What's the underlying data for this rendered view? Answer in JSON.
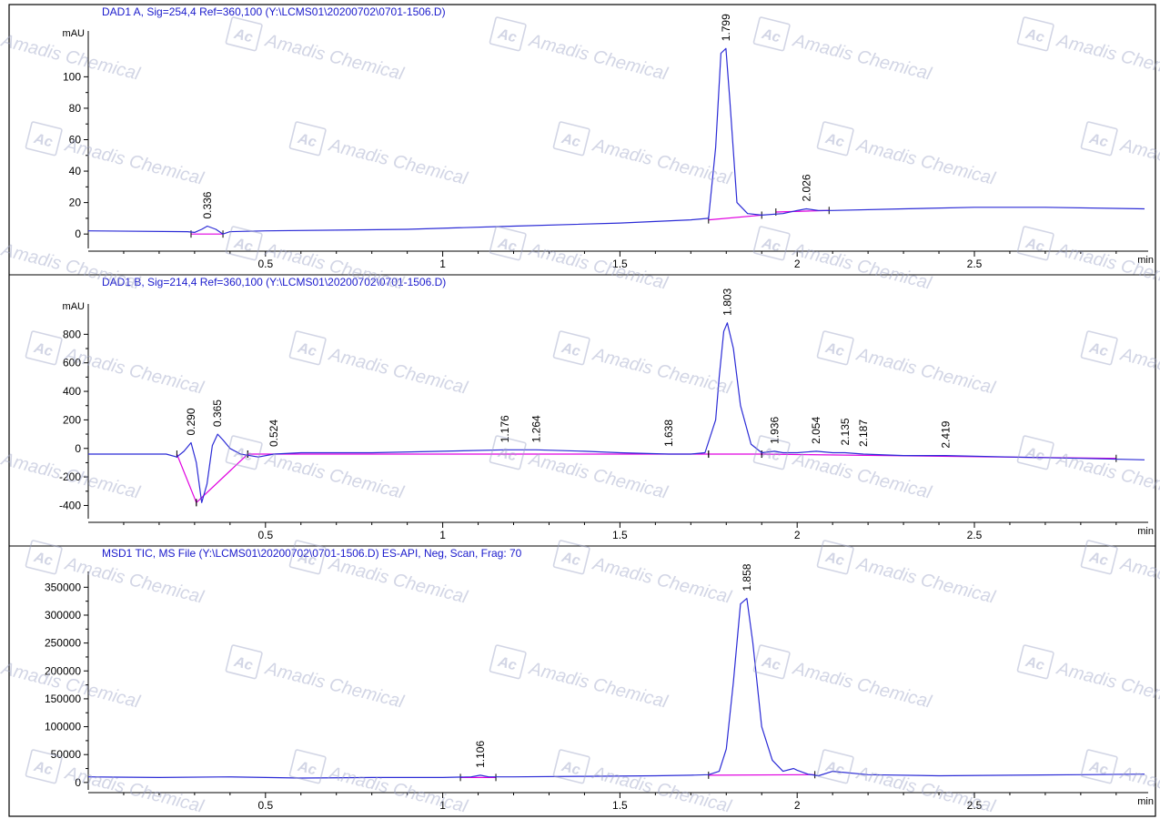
{
  "watermark": {
    "text": "Amadis Chemical",
    "logo": "Ac"
  },
  "colors": {
    "trace": "#2b2bd6",
    "baseline": "#e000e0",
    "title": "#1a1acc",
    "axis": "#000000",
    "frame": "#000000",
    "watermark": "#9aa2c4"
  },
  "x_unit": "min",
  "chart_data": [
    {
      "type": "line",
      "title": "DAD1 A, Sig=254,4 Ref=360,100 (Y:\\LCMS01\\20200702\\0701-1506.D)",
      "ylabel": "mAU",
      "xlabel": "min",
      "xlim": [
        0,
        2.98
      ],
      "ylim": [
        -8,
        128
      ],
      "x_ticks": [
        0.5,
        1,
        1.5,
        2,
        2.5
      ],
      "x_tick_labels": [
        "0.5",
        "1",
        "1.5",
        "2",
        "2.5"
      ],
      "y_ticks": [
        0,
        20,
        40,
        60,
        80,
        100
      ],
      "y_tick_labels": [
        "0",
        "20",
        "40",
        "60",
        "80",
        "100"
      ],
      "baseline_start": 2,
      "series": [
        {
          "x": [
            0.0,
            0.28,
            0.3,
            0.32,
            0.336,
            0.36,
            0.38,
            0.4,
            0.5,
            0.9,
            1.2,
            1.5,
            1.7,
            1.75,
            1.77,
            1.785,
            1.799,
            1.81,
            1.83,
            1.86,
            1.9,
            1.96,
            2.0,
            2.026,
            2.06,
            2.1,
            2.3,
            2.5,
            2.7,
            2.98
          ],
          "y": [
            2,
            1.5,
            1,
            3,
            5,
            3,
            0,
            1.5,
            2,
            3,
            5,
            7,
            9,
            10,
            55,
            115,
            118,
            85,
            20,
            13,
            12,
            13,
            15,
            16,
            15,
            15,
            16,
            17,
            17,
            16
          ]
        }
      ],
      "baseline_segments": [
        [
          [
            0.29,
            0
          ],
          [
            0.38,
            0
          ]
        ],
        [
          [
            1.75,
            9
          ],
          [
            1.9,
            12
          ]
        ],
        [
          [
            1.94,
            14
          ],
          [
            2.09,
            15
          ]
        ]
      ],
      "peaks": [
        {
          "label": "0.336",
          "x": 0.336,
          "y": 5
        },
        {
          "label": "1.799",
          "x": 1.799,
          "y": 118
        },
        {
          "label": "2.026",
          "x": 2.026,
          "y": 16
        }
      ]
    },
    {
      "type": "line",
      "title": "DAD1 B, Sig=214,4 Ref=360,100 (Y:\\LCMS01\\20200702\\0701-1506.D)",
      "ylabel": "mAU",
      "xlabel": "min",
      "xlim": [
        0,
        2.98
      ],
      "ylim": [
        -480,
        1000
      ],
      "x_ticks": [
        0.5,
        1,
        1.5,
        2,
        2.5
      ],
      "x_tick_labels": [
        "0.5",
        "1",
        "1.5",
        "2",
        "2.5"
      ],
      "y_ticks": [
        -400,
        -200,
        0,
        200,
        400,
        600,
        800
      ],
      "y_tick_labels": [
        "-400",
        "-200",
        "0",
        "200",
        "400",
        "600",
        "800"
      ],
      "baseline_start": 2,
      "series": [
        {
          "x": [
            0.0,
            0.22,
            0.25,
            0.27,
            0.29,
            0.305,
            0.32,
            0.335,
            0.35,
            0.365,
            0.38,
            0.4,
            0.43,
            0.48,
            0.524,
            0.6,
            0.8,
            1.0,
            1.176,
            1.264,
            1.4,
            1.5,
            1.638,
            1.7,
            1.74,
            1.77,
            1.78,
            1.793,
            1.803,
            1.82,
            1.84,
            1.87,
            1.9,
            1.936,
            1.96,
            2.0,
            2.054,
            2.1,
            2.135,
            2.187,
            2.3,
            2.419,
            2.6,
            2.8,
            2.98
          ],
          "y": [
            -40,
            -40,
            -60,
            -20,
            40,
            -100,
            -380,
            -250,
            20,
            100,
            60,
            0,
            -40,
            -60,
            -40,
            -30,
            -30,
            -20,
            -10,
            -10,
            -20,
            -30,
            -40,
            -40,
            -30,
            200,
            500,
            820,
            880,
            700,
            300,
            30,
            -30,
            -20,
            -30,
            -30,
            -20,
            -30,
            -30,
            -40,
            -50,
            -50,
            -60,
            -70,
            -80
          ]
        }
      ],
      "baseline_segments": [
        [
          [
            0.25,
            -40
          ],
          [
            0.305,
            -380
          ]
        ],
        [
          [
            0.305,
            -380
          ],
          [
            0.45,
            -40
          ]
        ],
        [
          [
            0.45,
            -40
          ],
          [
            1.75,
            -40
          ]
        ],
        [
          [
            1.75,
            -40
          ],
          [
            1.9,
            -40
          ]
        ],
        [
          [
            1.9,
            -40
          ],
          [
            2.9,
            -70
          ]
        ]
      ],
      "peaks": [
        {
          "label": "0.290",
          "x": 0.29,
          "y": 40
        },
        {
          "label": "0.365",
          "x": 0.365,
          "y": 100
        },
        {
          "label": "0.524",
          "x": 0.524,
          "y": -40
        },
        {
          "label": "1.176",
          "x": 1.176,
          "y": -10
        },
        {
          "label": "1.264",
          "x": 1.264,
          "y": -10
        },
        {
          "label": "1.638",
          "x": 1.638,
          "y": -40
        },
        {
          "label": "1.803",
          "x": 1.803,
          "y": 880
        },
        {
          "label": "1.936",
          "x": 1.936,
          "y": -20
        },
        {
          "label": "2.054",
          "x": 2.054,
          "y": -20
        },
        {
          "label": "2.135",
          "x": 2.135,
          "y": -30
        },
        {
          "label": "2.187",
          "x": 2.187,
          "y": -40
        },
        {
          "label": "2.419",
          "x": 2.419,
          "y": -50
        }
      ]
    },
    {
      "type": "line",
      "title": "MSD1 TIC, MS File (Y:\\LCMS01\\20200702\\0701-1506.D)    ES-API, Neg, Scan, Frag: 70",
      "ylabel": "",
      "xlabel": "min",
      "xlim": [
        0,
        2.98
      ],
      "ylim": [
        -10000,
        375000
      ],
      "x_ticks": [
        0.5,
        1,
        1.5,
        2,
        2.5
      ],
      "x_tick_labels": [
        "0.5",
        "1",
        "1.5",
        "2",
        "2.5"
      ],
      "y_ticks": [
        0,
        50000,
        100000,
        150000,
        200000,
        250000,
        300000,
        350000
      ],
      "y_tick_labels": [
        "0",
        "50000",
        "100000",
        "150000",
        "200000",
        "250000",
        "300000",
        "350000"
      ],
      "baseline_start": 0,
      "series": [
        {
          "x": [
            0.0,
            0.2,
            0.4,
            0.6,
            0.8,
            1.0,
            1.08,
            1.106,
            1.13,
            1.2,
            1.4,
            1.6,
            1.7,
            1.75,
            1.78,
            1.8,
            1.82,
            1.84,
            1.858,
            1.875,
            1.9,
            1.93,
            1.96,
            1.99,
            2.0,
            2.03,
            2.06,
            2.1,
            2.2,
            2.4,
            2.6,
            2.8,
            2.98
          ],
          "y": [
            10000,
            9000,
            10000,
            8000,
            9000,
            9000,
            10000,
            13000,
            10000,
            10000,
            11000,
            12000,
            13000,
            14000,
            20000,
            60000,
            180000,
            320000,
            330000,
            250000,
            100000,
            40000,
            20000,
            25000,
            22000,
            15000,
            12000,
            20000,
            14000,
            12000,
            13000,
            14000,
            15000
          ]
        }
      ],
      "baseline_segments": [
        [
          [
            1.05,
            9000
          ],
          [
            1.15,
            9000
          ]
        ],
        [
          [
            1.75,
            13000
          ],
          [
            2.05,
            14000
          ]
        ]
      ],
      "peaks": [
        {
          "label": "1.106",
          "x": 1.106,
          "y": 13000
        },
        {
          "label": "1.858",
          "x": 1.858,
          "y": 330000
        }
      ]
    }
  ]
}
